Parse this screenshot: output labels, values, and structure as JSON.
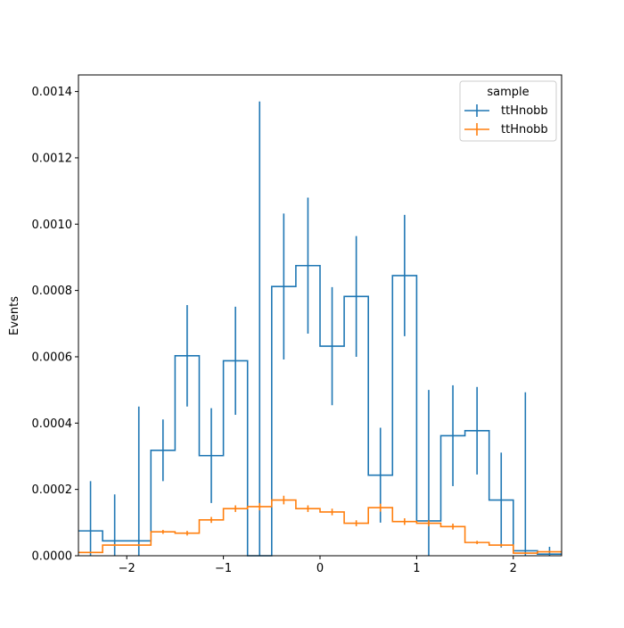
{
  "chart_data": {
    "type": "histogram",
    "xlabel": "",
    "ylabel": "Events",
    "xlim": [
      -2.5,
      2.5
    ],
    "ylim": [
      0,
      0.00145
    ],
    "xticks": [
      -2,
      -1,
      0,
      1,
      2
    ],
    "xtick_labels": [
      "−2",
      "−1",
      "0",
      "1",
      "2"
    ],
    "yticks": [
      0,
      0.0002,
      0.0004,
      0.0006,
      0.0008,
      0.001,
      0.0012,
      0.0014
    ],
    "ytick_labels": [
      "0.0000",
      "0.0002",
      "0.0004",
      "0.0006",
      "0.0008",
      "0.0010",
      "0.0012",
      "0.0014"
    ],
    "grid": false,
    "legend": {
      "title": "sample",
      "placement": "top-right"
    },
    "bin_edges": [
      -2.5,
      -2.25,
      -2.0,
      -1.75,
      -1.5,
      -1.25,
      -1.0,
      -0.75,
      -0.5,
      -0.25,
      0.0,
      0.25,
      0.5,
      0.75,
      1.0,
      1.25,
      1.5,
      1.75,
      2.0,
      2.25,
      2.5
    ],
    "series": [
      {
        "name": "ttHnobb",
        "color": "#1f77b4",
        "values": [
          7.5e-05,
          4.5e-05,
          4.5e-05,
          0.000318,
          0.000603,
          0.000302,
          0.000588,
          0.0,
          0.000812,
          0.000875,
          0.000632,
          0.000782,
          0.000243,
          0.000845,
          0.000105,
          0.000362,
          0.000377,
          0.000168,
          1.5e-05,
          5e-06
        ],
        "errors": [
          0.00015,
          0.00014,
          0.000405,
          9.3e-05,
          0.000153,
          0.000143,
          0.000163,
          0.00137,
          0.00022,
          0.000205,
          0.000178,
          0.000182,
          0.000143,
          0.000183,
          0.000395,
          0.000152,
          0.000132,
          0.000143,
          0.000478,
          2.2e-05
        ]
      },
      {
        "name": "ttHnobb",
        "color": "#ff7f0e",
        "values": [
          1e-05,
          3.2e-05,
          3.2e-05,
          7.2e-05,
          6.8e-05,
          0.000108,
          0.000142,
          0.000148,
          0.000168,
          0.000142,
          0.000132,
          9.8e-05,
          0.000145,
          0.000103,
          9.8e-05,
          8.8e-05,
          4e-05,
          3.2e-05,
          8e-06,
          1.2e-05
        ],
        "errors": [
          2e-06,
          3e-06,
          3e-06,
          6e-06,
          7e-06,
          9e-06,
          1e-05,
          1.1e-05,
          1.3e-05,
          1e-05,
          1e-05,
          9e-06,
          1.2e-05,
          1e-05,
          9e-06,
          9e-06,
          5e-06,
          4e-06,
          2e-06,
          3e-06
        ]
      }
    ]
  }
}
